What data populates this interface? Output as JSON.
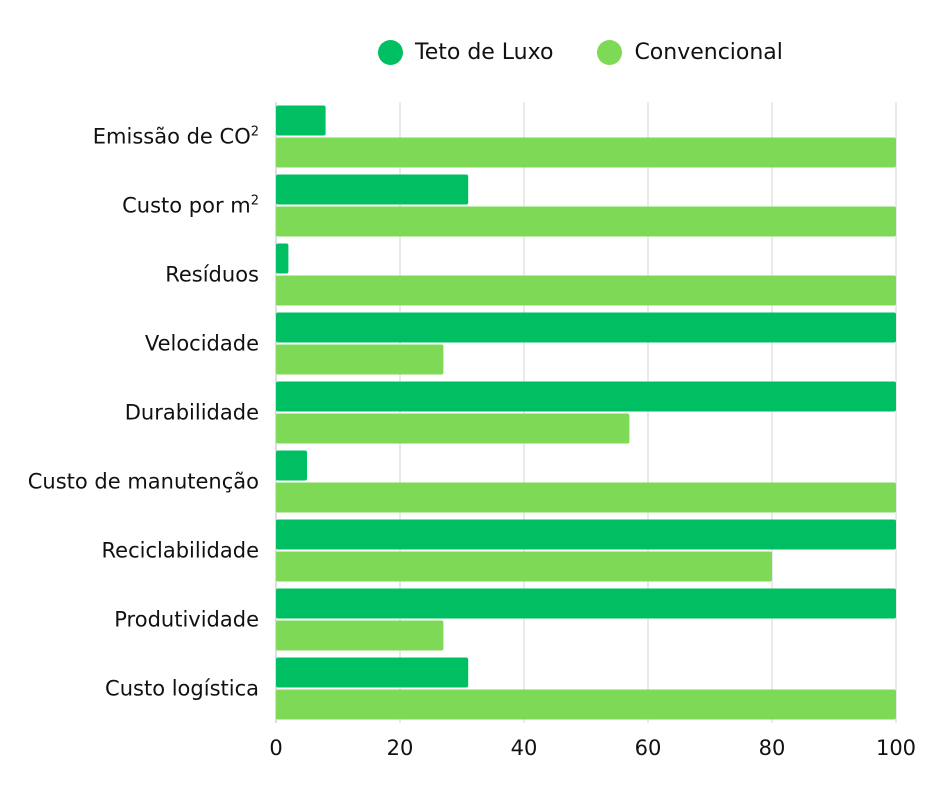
{
  "chart_data": {
    "type": "bar",
    "orientation": "horizontal",
    "title": "",
    "xlabel": "",
    "ylabel": "",
    "xlim": [
      0,
      100
    ],
    "xticks": [
      "0",
      "20",
      "40",
      "60",
      "80",
      "100"
    ],
    "grid": "vertical",
    "legend_position": "top-center",
    "categories": [
      "Emissão de CO²",
      "Custo por m²",
      "Resíduos",
      "Velocidade",
      "Durabilidade",
      "Custo de manutenção",
      "Reciclabilidade",
      "Produtividade",
      "Custo logística"
    ],
    "series": [
      {
        "name": "Teto de Luxo",
        "color": "#00BF63",
        "values": [
          8,
          31,
          2,
          100,
          100,
          5,
          100,
          100,
          31
        ]
      },
      {
        "name": "Convencional",
        "color": "#7ED957",
        "values": [
          100,
          100,
          100,
          27,
          57,
          100,
          80,
          27,
          100
        ]
      }
    ]
  }
}
